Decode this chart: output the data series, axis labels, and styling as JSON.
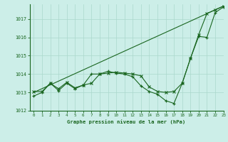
{
  "bg_color": "#cceee8",
  "grid_color": "#aad8cc",
  "line_color": "#1a6620",
  "title": "Graphe pression niveau de la mer (hPa)",
  "xlim": [
    -0.5,
    23
  ],
  "ylim": [
    1012.0,
    1017.8
  ],
  "yticks": [
    1012,
    1013,
    1014,
    1015,
    1016,
    1017
  ],
  "xticks": [
    0,
    1,
    2,
    3,
    4,
    5,
    6,
    7,
    8,
    9,
    10,
    11,
    12,
    13,
    14,
    15,
    16,
    17,
    18,
    19,
    20,
    21,
    22,
    23
  ],
  "line_straight": {
    "x": [
      0,
      23
    ],
    "y": [
      1013.0,
      1017.7
    ]
  },
  "line_zigzag": {
    "x": [
      0,
      1,
      2,
      3,
      4,
      5,
      6,
      7,
      8,
      9,
      10,
      11,
      12,
      13,
      14,
      15,
      16,
      17,
      18,
      19,
      20,
      21,
      22,
      23
    ],
    "y": [
      1012.8,
      1013.0,
      1013.5,
      1013.1,
      1013.5,
      1013.2,
      1013.4,
      1014.0,
      1014.0,
      1014.15,
      1014.05,
      1014.0,
      1013.85,
      1013.35,
      1013.05,
      1012.9,
      1012.55,
      1012.4,
      1013.5,
      1014.85,
      1016.05,
      1016.0,
      1017.35,
      1017.65
    ],
    "marker": "+"
  },
  "line_smooth": {
    "x": [
      0,
      1,
      2,
      3,
      4,
      5,
      6,
      7,
      8,
      9,
      10,
      11,
      12,
      13,
      14,
      15,
      16,
      17,
      18,
      19,
      20,
      21,
      22,
      23
    ],
    "y": [
      1013.05,
      1013.05,
      1013.5,
      1013.2,
      1013.55,
      1013.25,
      1013.4,
      1013.5,
      1014.0,
      1014.05,
      1014.1,
      1014.05,
      1014.0,
      1013.9,
      1013.3,
      1013.05,
      1013.0,
      1013.05,
      1013.5,
      1014.85,
      1016.15,
      1017.3,
      1017.5,
      1017.7
    ],
    "marker": "x"
  }
}
